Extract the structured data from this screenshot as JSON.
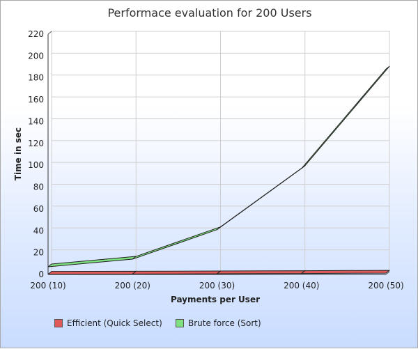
{
  "chart_data": {
    "type": "line",
    "title": "Performace evaluation for 200 Users",
    "xlabel": "Payments per User",
    "ylabel": "Time in sec",
    "categories": [
      "200 (10)",
      "200 (20)",
      "200 (30)",
      "200 (40)",
      "200 (50)"
    ],
    "ylim": [
      0,
      220
    ],
    "yticks": [
      0,
      20,
      40,
      60,
      80,
      100,
      120,
      140,
      160,
      180,
      200,
      220
    ],
    "grid": true,
    "legend_position": "bottom",
    "series": [
      {
        "name": "Efficient (Quick Select)",
        "values": [
          0.2,
          0.4,
          0.6,
          0.9,
          1.2
        ],
        "color": "#e05a5a"
      },
      {
        "name": "Brute force (Sort)",
        "values": [
          7,
          14,
          41,
          97,
          188
        ],
        "color": "#7fe07f"
      }
    ]
  }
}
